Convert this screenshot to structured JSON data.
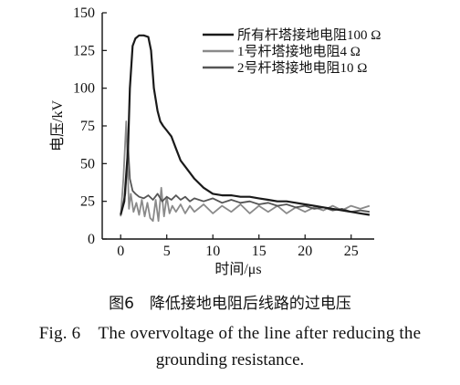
{
  "chart_data": {
    "type": "line",
    "xlabel": "时间/μs",
    "ylabel": "电压/kV",
    "xlim": [
      -2,
      27.5
    ],
    "ylim": [
      0,
      150
    ],
    "xticks": [
      0,
      5,
      10,
      15,
      20,
      25
    ],
    "yticks": [
      0,
      25,
      50,
      75,
      100,
      125,
      150
    ],
    "xtick_labels": [
      "0",
      "5",
      "10",
      "15",
      "20",
      "25"
    ],
    "ytick_labels": [
      "0",
      "25",
      "50",
      "75",
      "100",
      "125",
      "150"
    ],
    "legend_position": "top-right",
    "series": [
      {
        "name": "所有杆塔接地电阻100 Ω",
        "color": "#1a1a1a",
        "x": [
          0,
          0.4,
          0.8,
          1.0,
          1.3,
          1.6,
          2.0,
          2.5,
          3.0,
          3.3,
          3.6,
          4.0,
          4.3,
          4.6,
          5.0,
          5.5,
          6.0,
          6.5,
          7.0,
          7.5,
          8.0,
          9.0,
          10.0,
          11.0,
          12.0,
          13.0,
          14.0,
          15.0,
          16.0,
          17.0,
          18.0,
          19.0,
          20.0,
          21.0,
          22.0,
          23.0,
          24.0,
          25.0,
          26.0,
          27.0
        ],
        "y": [
          16,
          25,
          60,
          100,
          128,
          133,
          135,
          135,
          134,
          125,
          100,
          85,
          78,
          75,
          72,
          68,
          60,
          52,
          48,
          44,
          40,
          34,
          30,
          29,
          29,
          28,
          28,
          27,
          26,
          25,
          25,
          24,
          23,
          22,
          21,
          20,
          19,
          18,
          17,
          16
        ]
      },
      {
        "name": "1号杆塔接地电阻4 Ω",
        "color": "#8a8a8a",
        "x": [
          0,
          0.3,
          0.6,
          0.9,
          1.1,
          1.4,
          1.7,
          2.0,
          2.3,
          2.6,
          2.9,
          3.2,
          3.5,
          3.8,
          4.1,
          4.4,
          4.7,
          5.0,
          5.3,
          5.6,
          6.0,
          6.5,
          7.0,
          7.5,
          8.0,
          9.0,
          10.0,
          11.0,
          12.0,
          13.0,
          14.0,
          15.0,
          16.0,
          17.0,
          18.0,
          19.0,
          20.0,
          21.0,
          22.0,
          23.0,
          24.0,
          25.0,
          26.0,
          27.0
        ],
        "y": [
          15,
          40,
          78,
          20,
          30,
          18,
          24,
          16,
          26,
          15,
          24,
          14,
          12,
          26,
          12,
          34,
          15,
          28,
          17,
          22,
          18,
          23,
          17,
          22,
          18,
          23,
          17,
          22,
          18,
          23,
          17,
          22,
          18,
          22,
          17,
          21,
          18,
          21,
          19,
          22,
          19,
          22,
          20,
          22
        ]
      },
      {
        "name": "2号杆塔接地电阻10 Ω",
        "color": "#555555",
        "x": [
          0,
          0.5,
          0.8,
          1.0,
          1.3,
          1.6,
          2.0,
          2.5,
          3.0,
          3.5,
          4.0,
          4.5,
          5.0,
          5.5,
          6.0,
          6.5,
          7.0,
          7.5,
          8.0,
          9.0,
          10.0,
          11.0,
          12.0,
          13.0,
          14.0,
          15.0,
          16.0,
          17.0,
          18.0,
          19.0,
          20.0,
          21.0,
          22.0,
          23.0,
          24.0,
          25.0,
          26.0,
          27.0
        ],
        "y": [
          16,
          30,
          62,
          40,
          32,
          30,
          28,
          27,
          29,
          26,
          30,
          25,
          28,
          26,
          29,
          26,
          28,
          25,
          27,
          25,
          27,
          24,
          26,
          24,
          25,
          23,
          24,
          22,
          23,
          21,
          22,
          20,
          21,
          19,
          20,
          18,
          19,
          18
        ]
      }
    ]
  },
  "caption_cn": "图6　降低接地电阻后线路的过电压",
  "caption_en_line1": "Fig. 6　The overvoltage of the line after reducing the",
  "caption_en_line2": "grounding resistance."
}
